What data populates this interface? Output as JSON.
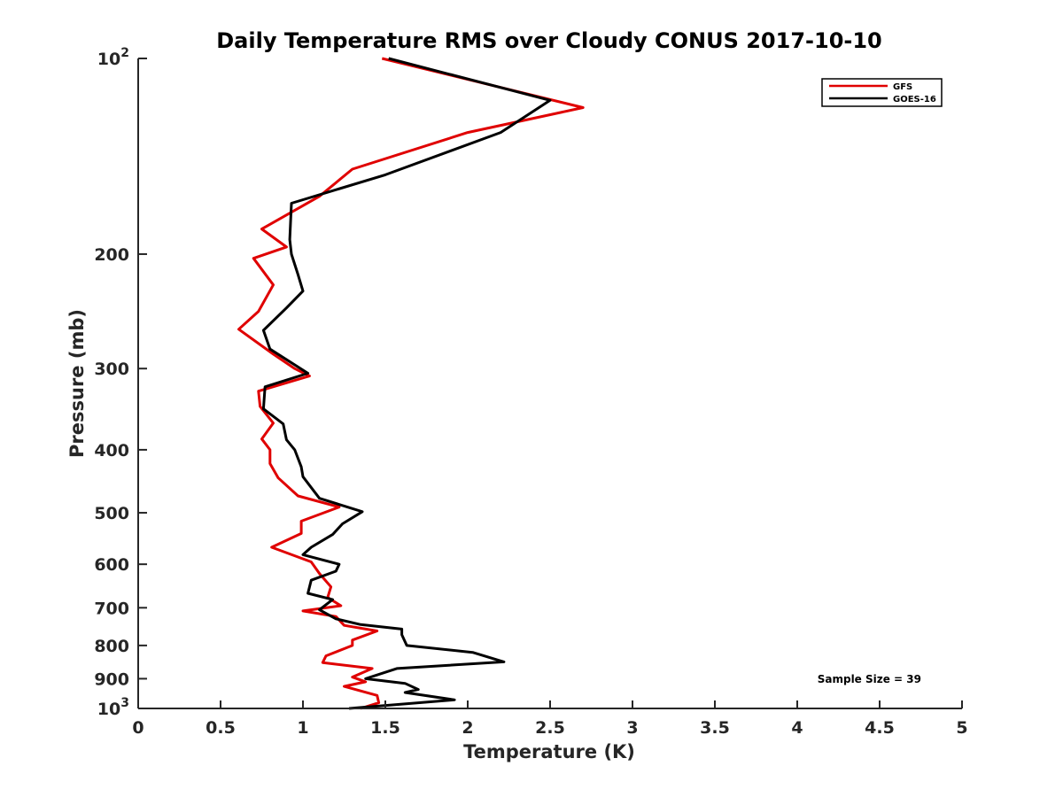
{
  "chart_data": {
    "type": "line",
    "title": "Daily Temperature RMS over Cloudy CONUS 2017-10-10",
    "xlabel": "Temperature (K)",
    "ylabel": "Pressure (mb)",
    "xlim": [
      0,
      5
    ],
    "ylim": [
      100,
      1000
    ],
    "y_scale": "log",
    "y_reversed": true,
    "x_ticks": [
      "0",
      "0.5",
      "1",
      "1.5",
      "2",
      "2.5",
      "3",
      "3.5",
      "4",
      "4.5",
      "5"
    ],
    "x_tick_values": [
      0,
      0.5,
      1,
      1.5,
      2,
      2.5,
      3,
      3.5,
      4,
      4.5,
      5
    ],
    "y_ticks": [
      {
        "value": 100,
        "base": "10",
        "exp": "2"
      },
      {
        "value": 200,
        "label": "200"
      },
      {
        "value": 300,
        "label": "300"
      },
      {
        "value": 400,
        "label": "400"
      },
      {
        "value": 500,
        "label": "500"
      },
      {
        "value": 600,
        "label": "600"
      },
      {
        "value": 700,
        "label": "700"
      },
      {
        "value": 800,
        "label": "800"
      },
      {
        "value": 900,
        "label": "900"
      },
      {
        "value": 1000,
        "base": "10",
        "exp": "3"
      }
    ],
    "grid": false,
    "legend_position": "top-right",
    "annotation": "Sample Size = 39",
    "series": [
      {
        "name": "GFS",
        "color": "#e00000",
        "x": [
          1.48,
          2.7,
          2.0,
          1.3,
          1.1,
          0.75,
          0.9,
          0.7,
          0.82,
          0.73,
          0.61,
          0.82,
          0.95,
          1.04,
          0.73,
          0.74,
          0.82,
          0.75,
          0.8,
          0.8,
          0.85,
          0.97,
          1.22,
          0.99,
          0.99,
          0.81,
          1.05,
          1.1,
          1.17,
          1.15,
          1.23,
          1.0,
          1.2,
          1.25,
          1.45,
          1.3,
          1.3,
          1.14,
          1.12,
          1.42,
          1.3,
          1.38,
          1.25,
          1.45,
          1.46,
          1.35
        ],
        "y": [
          100,
          119,
          130,
          148,
          163,
          183,
          195,
          203,
          223,
          245,
          261,
          285,
          300,
          308,
          325,
          343,
          364,
          385,
          400,
          420,
          442,
          471,
          490,
          515,
          538,
          565,
          595,
          620,
          650,
          675,
          695,
          708,
          722,
          745,
          760,
          785,
          800,
          830,
          850,
          868,
          895,
          910,
          925,
          955,
          980,
          1000
        ]
      },
      {
        "name": "GOES-16",
        "color": "#000000",
        "x": [
          1.52,
          2.5,
          2.2,
          1.5,
          0.93,
          0.92,
          0.93,
          0.97,
          1.0,
          0.9,
          0.76,
          0.8,
          1.03,
          0.77,
          0.76,
          0.88,
          0.9,
          0.95,
          0.99,
          1.0,
          1.1,
          1.36,
          1.24,
          1.18,
          1.05,
          1.0,
          1.22,
          1.2,
          1.05,
          1.03,
          1.18,
          1.1,
          1.2,
          1.35,
          1.6,
          1.6,
          1.63,
          2.03,
          2.22,
          1.57,
          1.38,
          1.62,
          1.7,
          1.62,
          1.92,
          1.28
        ],
        "y": [
          100,
          116,
          130,
          151,
          167,
          190,
          200,
          215,
          228,
          242,
          262,
          280,
          305,
          320,
          346,
          365,
          386,
          400,
          425,
          440,
          475,
          498,
          520,
          540,
          565,
          580,
          600,
          615,
          635,
          665,
          680,
          705,
          728,
          743,
          755,
          770,
          800,
          820,
          848,
          868,
          900,
          915,
          935,
          945,
          970,
          1000
        ]
      }
    ]
  }
}
